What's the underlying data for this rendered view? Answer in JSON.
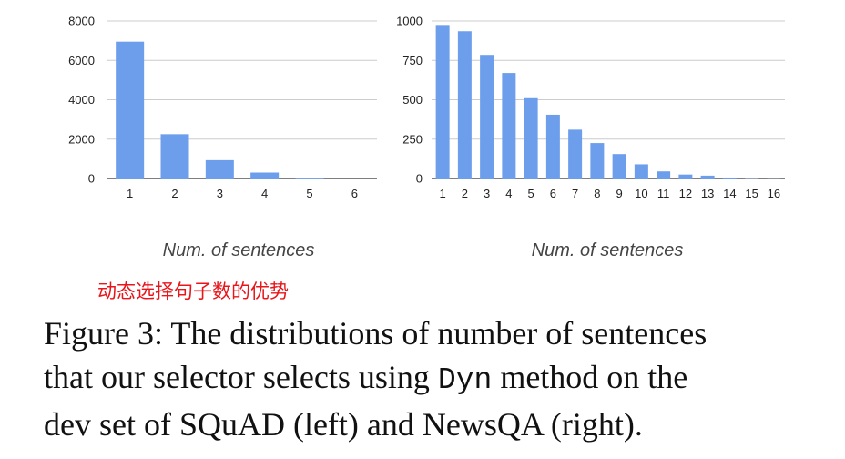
{
  "chart_data": [
    {
      "type": "bar",
      "categories": [
        "1",
        "2",
        "3",
        "4",
        "5",
        "6"
      ],
      "values": [
        6950,
        2250,
        930,
        300,
        40,
        0
      ],
      "ylim": [
        0,
        8000
      ],
      "yticks": [
        0,
        2000,
        4000,
        6000,
        8000
      ],
      "xlabel": "Num. of sentences",
      "grid": true,
      "color": "#6d9eeb"
    },
    {
      "type": "bar",
      "categories": [
        "1",
        "2",
        "3",
        "4",
        "5",
        "6",
        "7",
        "8",
        "9",
        "10",
        "11",
        "12",
        "13",
        "14",
        "15",
        "16"
      ],
      "values": [
        975,
        935,
        785,
        670,
        510,
        405,
        310,
        225,
        155,
        90,
        45,
        25,
        18,
        6,
        2,
        1
      ],
      "ylim": [
        0,
        1000
      ],
      "yticks": [
        0,
        250,
        500,
        750,
        1000
      ],
      "xlabel": "Num. of sentences",
      "grid": true,
      "color": "#6d9eeb"
    }
  ],
  "annotation": "动态选择句子数的优势",
  "caption": {
    "line1": "Figure 3: The distributions of number of sentences",
    "line2_before": "that our selector selects using ",
    "line2_code": "Dyn",
    "line2_after": " method on the",
    "line3": "dev set of SQuAD (left) and NewsQA (right)."
  }
}
